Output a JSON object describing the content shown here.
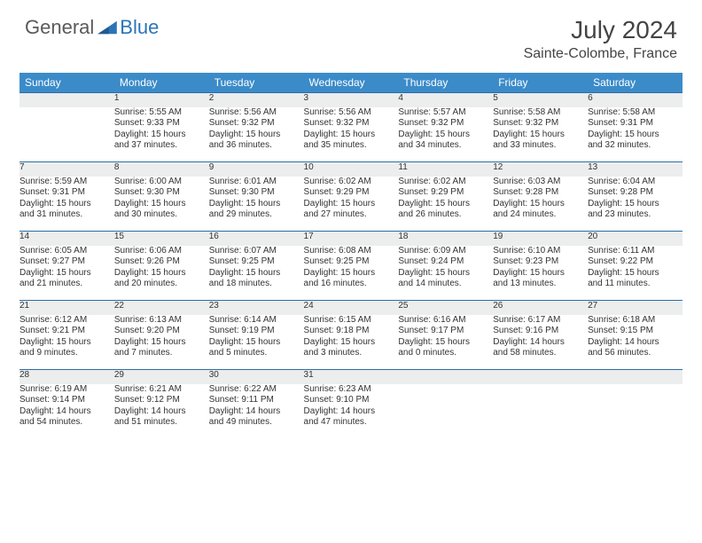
{
  "logo": {
    "general": "General",
    "blue": "Blue"
  },
  "title": "July 2024",
  "location": "Sainte-Colombe, France",
  "colors": {
    "header_bg": "#3b8bc9",
    "row_divider": "#2b6fa8",
    "daynum_bg": "#eceded",
    "text": "#333333",
    "logo_gray": "#5a5a5a",
    "logo_blue": "#2b74b8"
  },
  "weekdays": [
    "Sunday",
    "Monday",
    "Tuesday",
    "Wednesday",
    "Thursday",
    "Friday",
    "Saturday"
  ],
  "weeks": [
    [
      {
        "day": "",
        "lines": []
      },
      {
        "day": "1",
        "lines": [
          "Sunrise: 5:55 AM",
          "Sunset: 9:33 PM",
          "Daylight: 15 hours",
          "and 37 minutes."
        ]
      },
      {
        "day": "2",
        "lines": [
          "Sunrise: 5:56 AM",
          "Sunset: 9:32 PM",
          "Daylight: 15 hours",
          "and 36 minutes."
        ]
      },
      {
        "day": "3",
        "lines": [
          "Sunrise: 5:56 AM",
          "Sunset: 9:32 PM",
          "Daylight: 15 hours",
          "and 35 minutes."
        ]
      },
      {
        "day": "4",
        "lines": [
          "Sunrise: 5:57 AM",
          "Sunset: 9:32 PM",
          "Daylight: 15 hours",
          "and 34 minutes."
        ]
      },
      {
        "day": "5",
        "lines": [
          "Sunrise: 5:58 AM",
          "Sunset: 9:32 PM",
          "Daylight: 15 hours",
          "and 33 minutes."
        ]
      },
      {
        "day": "6",
        "lines": [
          "Sunrise: 5:58 AM",
          "Sunset: 9:31 PM",
          "Daylight: 15 hours",
          "and 32 minutes."
        ]
      }
    ],
    [
      {
        "day": "7",
        "lines": [
          "Sunrise: 5:59 AM",
          "Sunset: 9:31 PM",
          "Daylight: 15 hours",
          "and 31 minutes."
        ]
      },
      {
        "day": "8",
        "lines": [
          "Sunrise: 6:00 AM",
          "Sunset: 9:30 PM",
          "Daylight: 15 hours",
          "and 30 minutes."
        ]
      },
      {
        "day": "9",
        "lines": [
          "Sunrise: 6:01 AM",
          "Sunset: 9:30 PM",
          "Daylight: 15 hours",
          "and 29 minutes."
        ]
      },
      {
        "day": "10",
        "lines": [
          "Sunrise: 6:02 AM",
          "Sunset: 9:29 PM",
          "Daylight: 15 hours",
          "and 27 minutes."
        ]
      },
      {
        "day": "11",
        "lines": [
          "Sunrise: 6:02 AM",
          "Sunset: 9:29 PM",
          "Daylight: 15 hours",
          "and 26 minutes."
        ]
      },
      {
        "day": "12",
        "lines": [
          "Sunrise: 6:03 AM",
          "Sunset: 9:28 PM",
          "Daylight: 15 hours",
          "and 24 minutes."
        ]
      },
      {
        "day": "13",
        "lines": [
          "Sunrise: 6:04 AM",
          "Sunset: 9:28 PM",
          "Daylight: 15 hours",
          "and 23 minutes."
        ]
      }
    ],
    [
      {
        "day": "14",
        "lines": [
          "Sunrise: 6:05 AM",
          "Sunset: 9:27 PM",
          "Daylight: 15 hours",
          "and 21 minutes."
        ]
      },
      {
        "day": "15",
        "lines": [
          "Sunrise: 6:06 AM",
          "Sunset: 9:26 PM",
          "Daylight: 15 hours",
          "and 20 minutes."
        ]
      },
      {
        "day": "16",
        "lines": [
          "Sunrise: 6:07 AM",
          "Sunset: 9:25 PM",
          "Daylight: 15 hours",
          "and 18 minutes."
        ]
      },
      {
        "day": "17",
        "lines": [
          "Sunrise: 6:08 AM",
          "Sunset: 9:25 PM",
          "Daylight: 15 hours",
          "and 16 minutes."
        ]
      },
      {
        "day": "18",
        "lines": [
          "Sunrise: 6:09 AM",
          "Sunset: 9:24 PM",
          "Daylight: 15 hours",
          "and 14 minutes."
        ]
      },
      {
        "day": "19",
        "lines": [
          "Sunrise: 6:10 AM",
          "Sunset: 9:23 PM",
          "Daylight: 15 hours",
          "and 13 minutes."
        ]
      },
      {
        "day": "20",
        "lines": [
          "Sunrise: 6:11 AM",
          "Sunset: 9:22 PM",
          "Daylight: 15 hours",
          "and 11 minutes."
        ]
      }
    ],
    [
      {
        "day": "21",
        "lines": [
          "Sunrise: 6:12 AM",
          "Sunset: 9:21 PM",
          "Daylight: 15 hours",
          "and 9 minutes."
        ]
      },
      {
        "day": "22",
        "lines": [
          "Sunrise: 6:13 AM",
          "Sunset: 9:20 PM",
          "Daylight: 15 hours",
          "and 7 minutes."
        ]
      },
      {
        "day": "23",
        "lines": [
          "Sunrise: 6:14 AM",
          "Sunset: 9:19 PM",
          "Daylight: 15 hours",
          "and 5 minutes."
        ]
      },
      {
        "day": "24",
        "lines": [
          "Sunrise: 6:15 AM",
          "Sunset: 9:18 PM",
          "Daylight: 15 hours",
          "and 3 minutes."
        ]
      },
      {
        "day": "25",
        "lines": [
          "Sunrise: 6:16 AM",
          "Sunset: 9:17 PM",
          "Daylight: 15 hours",
          "and 0 minutes."
        ]
      },
      {
        "day": "26",
        "lines": [
          "Sunrise: 6:17 AM",
          "Sunset: 9:16 PM",
          "Daylight: 14 hours",
          "and 58 minutes."
        ]
      },
      {
        "day": "27",
        "lines": [
          "Sunrise: 6:18 AM",
          "Sunset: 9:15 PM",
          "Daylight: 14 hours",
          "and 56 minutes."
        ]
      }
    ],
    [
      {
        "day": "28",
        "lines": [
          "Sunrise: 6:19 AM",
          "Sunset: 9:14 PM",
          "Daylight: 14 hours",
          "and 54 minutes."
        ]
      },
      {
        "day": "29",
        "lines": [
          "Sunrise: 6:21 AM",
          "Sunset: 9:12 PM",
          "Daylight: 14 hours",
          "and 51 minutes."
        ]
      },
      {
        "day": "30",
        "lines": [
          "Sunrise: 6:22 AM",
          "Sunset: 9:11 PM",
          "Daylight: 14 hours",
          "and 49 minutes."
        ]
      },
      {
        "day": "31",
        "lines": [
          "Sunrise: 6:23 AM",
          "Sunset: 9:10 PM",
          "Daylight: 14 hours",
          "and 47 minutes."
        ]
      },
      {
        "day": "",
        "lines": []
      },
      {
        "day": "",
        "lines": []
      },
      {
        "day": "",
        "lines": []
      }
    ]
  ]
}
